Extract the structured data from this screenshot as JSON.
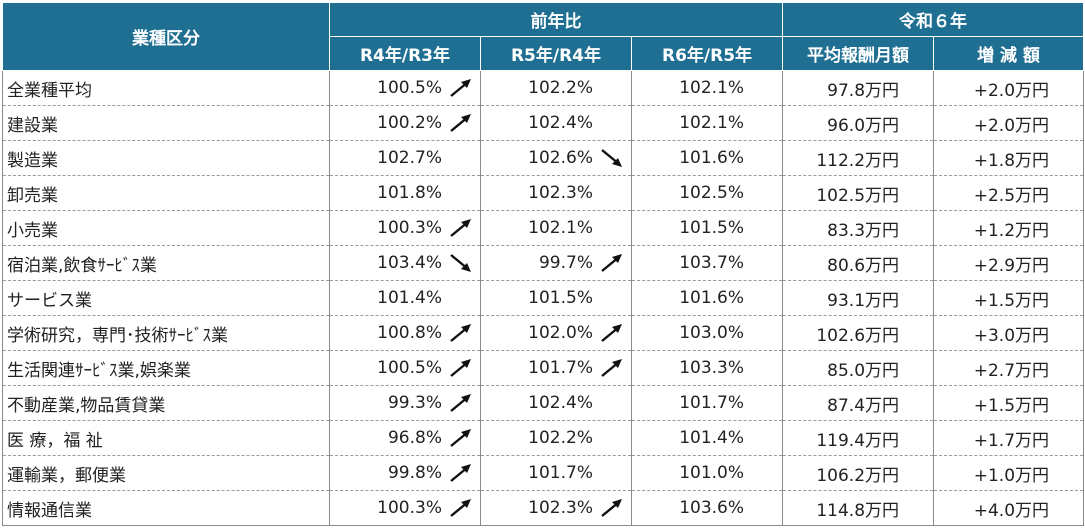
{
  "header": {
    "category": "業種区分",
    "yoy_group": "前年比",
    "r6_group": "令和６年",
    "cols": [
      "R4年/R3年",
      "R5年/R4年",
      "R6年/R5年",
      "平均報酬月額",
      "増 減 額"
    ]
  },
  "rows": [
    {
      "label": "全業種平均",
      "r4": "100.5%",
      "r4_arrow": "up",
      "r5": "102.2%",
      "r5_arrow": "",
      "r6": "102.1%",
      "avg": "97.8万円",
      "diff": "+2.0万円"
    },
    {
      "label": "建設業",
      "r4": "100.2%",
      "r4_arrow": "up",
      "r5": "102.4%",
      "r5_arrow": "",
      "r6": "102.1%",
      "avg": "96.0万円",
      "diff": "+2.0万円"
    },
    {
      "label": "製造業",
      "r4": "102.7%",
      "r4_arrow": "",
      "r5": "102.6%",
      "r5_arrow": "down",
      "r6": "101.6%",
      "avg": "112.2万円",
      "diff": "+1.8万円"
    },
    {
      "label": "卸売業",
      "r4": "101.8%",
      "r4_arrow": "",
      "r5": "102.3%",
      "r5_arrow": "",
      "r6": "102.5%",
      "avg": "102.5万円",
      "diff": "+2.5万円"
    },
    {
      "label": "小売業",
      "r4": "100.3%",
      "r4_arrow": "up",
      "r5": "102.1%",
      "r5_arrow": "",
      "r6": "101.5%",
      "avg": "83.3万円",
      "diff": "+1.2万円"
    },
    {
      "label": "宿泊業,飲食ｻｰﾋﾞｽ業",
      "r4": "103.4%",
      "r4_arrow": "down",
      "r5": "99.7%",
      "r5_arrow": "up",
      "r6": "103.7%",
      "avg": "80.6万円",
      "diff": "+2.9万円"
    },
    {
      "label": "サービス業",
      "r4": "101.4%",
      "r4_arrow": "",
      "r5": "101.5%",
      "r5_arrow": "",
      "r6": "101.6%",
      "avg": "93.1万円",
      "diff": "+1.5万円"
    },
    {
      "label": "学術研究，専門･技術ｻｰﾋﾞｽ業",
      "r4": "100.8%",
      "r4_arrow": "up",
      "r5": "102.0%",
      "r5_arrow": "up",
      "r6": "103.0%",
      "avg": "102.6万円",
      "diff": "+3.0万円"
    },
    {
      "label": "生活関連ｻｰﾋﾞｽ業,娯楽業",
      "r4": "100.5%",
      "r4_arrow": "up",
      "r5": "101.7%",
      "r5_arrow": "up",
      "r6": "103.3%",
      "avg": "85.0万円",
      "diff": "+2.7万円"
    },
    {
      "label": "不動産業,物品賃貸業",
      "r4": "99.3%",
      "r4_arrow": "up",
      "r5": "102.4%",
      "r5_arrow": "",
      "r6": "101.7%",
      "avg": "87.4万円",
      "diff": "+1.5万円"
    },
    {
      "label": "医 療，福 祉",
      "r4": "96.8%",
      "r4_arrow": "up",
      "r5": "102.2%",
      "r5_arrow": "",
      "r6": "101.4%",
      "avg": "119.4万円",
      "diff": "+1.7万円"
    },
    {
      "label": "運輸業，郵便業",
      "r4": "99.8%",
      "r4_arrow": "up",
      "r5": "101.7%",
      "r5_arrow": "",
      "r6": "101.0%",
      "avg": "106.2万円",
      "diff": "+1.0万円"
    },
    {
      "label": "情報通信業",
      "r4": "100.3%",
      "r4_arrow": "up",
      "r5": "102.3%",
      "r5_arrow": "up",
      "r6": "103.6%",
      "avg": "114.8万円",
      "diff": "+4.0万円"
    }
  ]
}
